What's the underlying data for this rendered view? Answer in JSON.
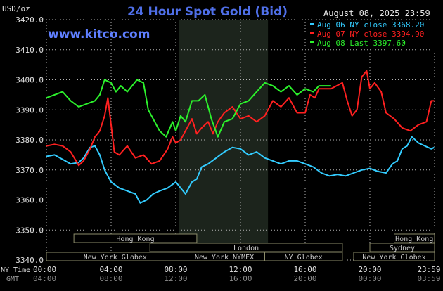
{
  "chart_data": {
    "type": "line",
    "title": "24 Hour Spot Gold (Bid)",
    "watermark": "www.kitco.com",
    "timestamp": "August 08, 2025 23:59",
    "y_unit_label": "USD/oz",
    "ylim": [
      3340,
      3420
    ],
    "y_ticks": [
      "3420.0",
      "3410.0",
      "3400.0",
      "3390.0",
      "3380.0",
      "3370.0",
      "3360.0",
      "3350.0",
      "3340.0"
    ],
    "x_row1_label": "NY Time",
    "x_row2_label": "GMT",
    "x_ticks_ny": [
      "00:00",
      "04:00",
      "08:00",
      "12:00",
      "16:00",
      "20:00",
      "23:59"
    ],
    "x_ticks_gmt": [
      "04:00",
      "08:00",
      "12:00",
      "16:00",
      "20:00",
      "00:00",
      "03:59"
    ],
    "highlight_range_hours": [
      8.2,
      13.7
    ],
    "colors": {
      "background": "#000000",
      "highlight": "#1c241c",
      "grid": "#b4b4b4",
      "axis_text": "#e0e0e0",
      "title": "#4f6fe8",
      "watermark": "#5f7fff",
      "session_box": "#3a3a3a",
      "session_text": "#c8c8c8"
    },
    "series": [
      {
        "legend": "Aug 06 NY close 3368.20",
        "color": "#33ccff",
        "points": [
          [
            0,
            3374.5
          ],
          [
            0.5,
            3375
          ],
          [
            1,
            3373.5
          ],
          [
            1.5,
            3372
          ],
          [
            2,
            3372.5
          ],
          [
            2.3,
            3374
          ],
          [
            2.7,
            3377.5
          ],
          [
            3,
            3378
          ],
          [
            3.3,
            3375
          ],
          [
            3.6,
            3370
          ],
          [
            4,
            3366
          ],
          [
            4.5,
            3364
          ],
          [
            5,
            3363
          ],
          [
            5.5,
            3362
          ],
          [
            5.8,
            3359
          ],
          [
            6.2,
            3360
          ],
          [
            6.6,
            3362
          ],
          [
            7,
            3363
          ],
          [
            7.5,
            3364
          ],
          [
            8,
            3366
          ],
          [
            8.3,
            3364
          ],
          [
            8.6,
            3362
          ],
          [
            9,
            3366
          ],
          [
            9.3,
            3367
          ],
          [
            9.6,
            3371
          ],
          [
            10,
            3372
          ],
          [
            10.5,
            3374
          ],
          [
            11,
            3376
          ],
          [
            11.5,
            3377.5
          ],
          [
            12,
            3377
          ],
          [
            12.5,
            3375
          ],
          [
            13,
            3376
          ],
          [
            13.5,
            3374
          ],
          [
            14,
            3373
          ],
          [
            14.5,
            3372
          ],
          [
            15,
            3373
          ],
          [
            15.5,
            3373
          ],
          [
            16,
            3372
          ],
          [
            16.5,
            3371
          ],
          [
            17,
            3369
          ],
          [
            17.5,
            3368
          ],
          [
            18,
            3368.5
          ],
          [
            18.5,
            3368
          ],
          [
            19,
            3369
          ],
          [
            19.5,
            3370
          ],
          [
            20,
            3370.5
          ],
          [
            20.5,
            3369.5
          ],
          [
            21,
            3369
          ],
          [
            21.4,
            3372
          ],
          [
            21.7,
            3373
          ],
          [
            22,
            3377
          ],
          [
            22.3,
            3378
          ],
          [
            22.6,
            3381
          ],
          [
            23,
            3379
          ],
          [
            23.4,
            3378
          ],
          [
            23.8,
            3377
          ],
          [
            23.98,
            3377.5
          ]
        ]
      },
      {
        "legend": "Aug 07 NY close 3394.90",
        "color": "#ff2020",
        "points": [
          [
            0,
            3378
          ],
          [
            0.5,
            3378.5
          ],
          [
            1,
            3378
          ],
          [
            1.5,
            3376
          ],
          [
            2,
            3371.5
          ],
          [
            2.3,
            3373
          ],
          [
            2.7,
            3377
          ],
          [
            3,
            3381
          ],
          [
            3.3,
            3383
          ],
          [
            3.6,
            3388
          ],
          [
            3.8,
            3394
          ],
          [
            4,
            3385
          ],
          [
            4.2,
            3376
          ],
          [
            4.5,
            3375
          ],
          [
            5,
            3378
          ],
          [
            5.5,
            3374
          ],
          [
            6,
            3375
          ],
          [
            6.5,
            3372
          ],
          [
            7,
            3373
          ],
          [
            7.5,
            3377
          ],
          [
            7.8,
            3381
          ],
          [
            8,
            3379
          ],
          [
            8.3,
            3380
          ],
          [
            8.6,
            3383
          ],
          [
            9,
            3387
          ],
          [
            9.3,
            3382
          ],
          [
            9.6,
            3384
          ],
          [
            10,
            3386
          ],
          [
            10.3,
            3382
          ],
          [
            10.6,
            3386
          ],
          [
            11,
            3389
          ],
          [
            11.5,
            3391
          ],
          [
            12,
            3387
          ],
          [
            12.5,
            3388
          ],
          [
            13,
            3386
          ],
          [
            13.5,
            3388
          ],
          [
            14,
            3393
          ],
          [
            14.5,
            3391
          ],
          [
            15,
            3394
          ],
          [
            15.5,
            3389
          ],
          [
            16,
            3389
          ],
          [
            16.3,
            3395
          ],
          [
            16.6,
            3394
          ],
          [
            16.85,
            3397
          ],
          [
            17.6,
            3397
          ],
          [
            18.3,
            3399
          ],
          [
            18.6,
            3393
          ],
          [
            18.9,
            3388
          ],
          [
            19.2,
            3390
          ],
          [
            19.5,
            3401
          ],
          [
            19.8,
            3403
          ],
          [
            20,
            3397
          ],
          [
            20.3,
            3399
          ],
          [
            20.7,
            3396
          ],
          [
            21,
            3389
          ],
          [
            21.5,
            3387
          ],
          [
            22,
            3384
          ],
          [
            22.5,
            3383
          ],
          [
            23,
            3385
          ],
          [
            23.5,
            3386
          ],
          [
            23.8,
            3393
          ],
          [
            23.98,
            3393
          ]
        ]
      },
      {
        "legend": "Aug 08 Last 3397.60",
        "color": "#2cf22c",
        "points": [
          [
            0,
            3394
          ],
          [
            0.5,
            3395
          ],
          [
            1,
            3396
          ],
          [
            1.5,
            3393
          ],
          [
            2,
            3391
          ],
          [
            2.5,
            3392
          ],
          [
            3,
            3393
          ],
          [
            3.3,
            3395
          ],
          [
            3.6,
            3400
          ],
          [
            4,
            3399
          ],
          [
            4.3,
            3396
          ],
          [
            4.6,
            3398
          ],
          [
            5,
            3396
          ],
          [
            5.3,
            3398
          ],
          [
            5.6,
            3400
          ],
          [
            6,
            3399
          ],
          [
            6.3,
            3390
          ],
          [
            6.6,
            3387
          ],
          [
            7,
            3383
          ],
          [
            7.4,
            3381
          ],
          [
            7.8,
            3386
          ],
          [
            8,
            3383
          ],
          [
            8.3,
            3388
          ],
          [
            8.6,
            3386
          ],
          [
            9,
            3393
          ],
          [
            9.4,
            3393
          ],
          [
            9.8,
            3395
          ],
          [
            10.2,
            3387
          ],
          [
            10.6,
            3381
          ],
          [
            11,
            3386
          ],
          [
            11.5,
            3387
          ],
          [
            12,
            3392
          ],
          [
            12.5,
            3393
          ],
          [
            13,
            3396
          ],
          [
            13.5,
            3399
          ],
          [
            14,
            3398
          ],
          [
            14.5,
            3396
          ],
          [
            15,
            3398
          ],
          [
            15.5,
            3395
          ],
          [
            16,
            3397
          ],
          [
            16.5,
            3396
          ],
          [
            16.85,
            3398
          ],
          [
            17.6,
            3398
          ]
        ]
      }
    ],
    "sessions": [
      {
        "label": "Hong Kong",
        "start": 1.7,
        "end": 9.3,
        "row": 0
      },
      {
        "label": "London",
        "start": 6.4,
        "end": 18.3,
        "row": 1
      },
      {
        "label": "New York Globex",
        "start": 0,
        "end": 8.5,
        "row": 2
      },
      {
        "label": "New York NYMEX",
        "start": 8.5,
        "end": 13.5,
        "row": 2
      },
      {
        "label": "NY Globex",
        "start": 13.5,
        "end": 18.3,
        "row": 2
      },
      {
        "label": "Hong Kong",
        "start": 21.5,
        "end": 25,
        "row": 0
      },
      {
        "label": "Sydney",
        "start": 20.0,
        "end": 25,
        "row": 1
      },
      {
        "label": "New York Globex",
        "start": 19.0,
        "end": 25,
        "row": 2
      }
    ]
  }
}
